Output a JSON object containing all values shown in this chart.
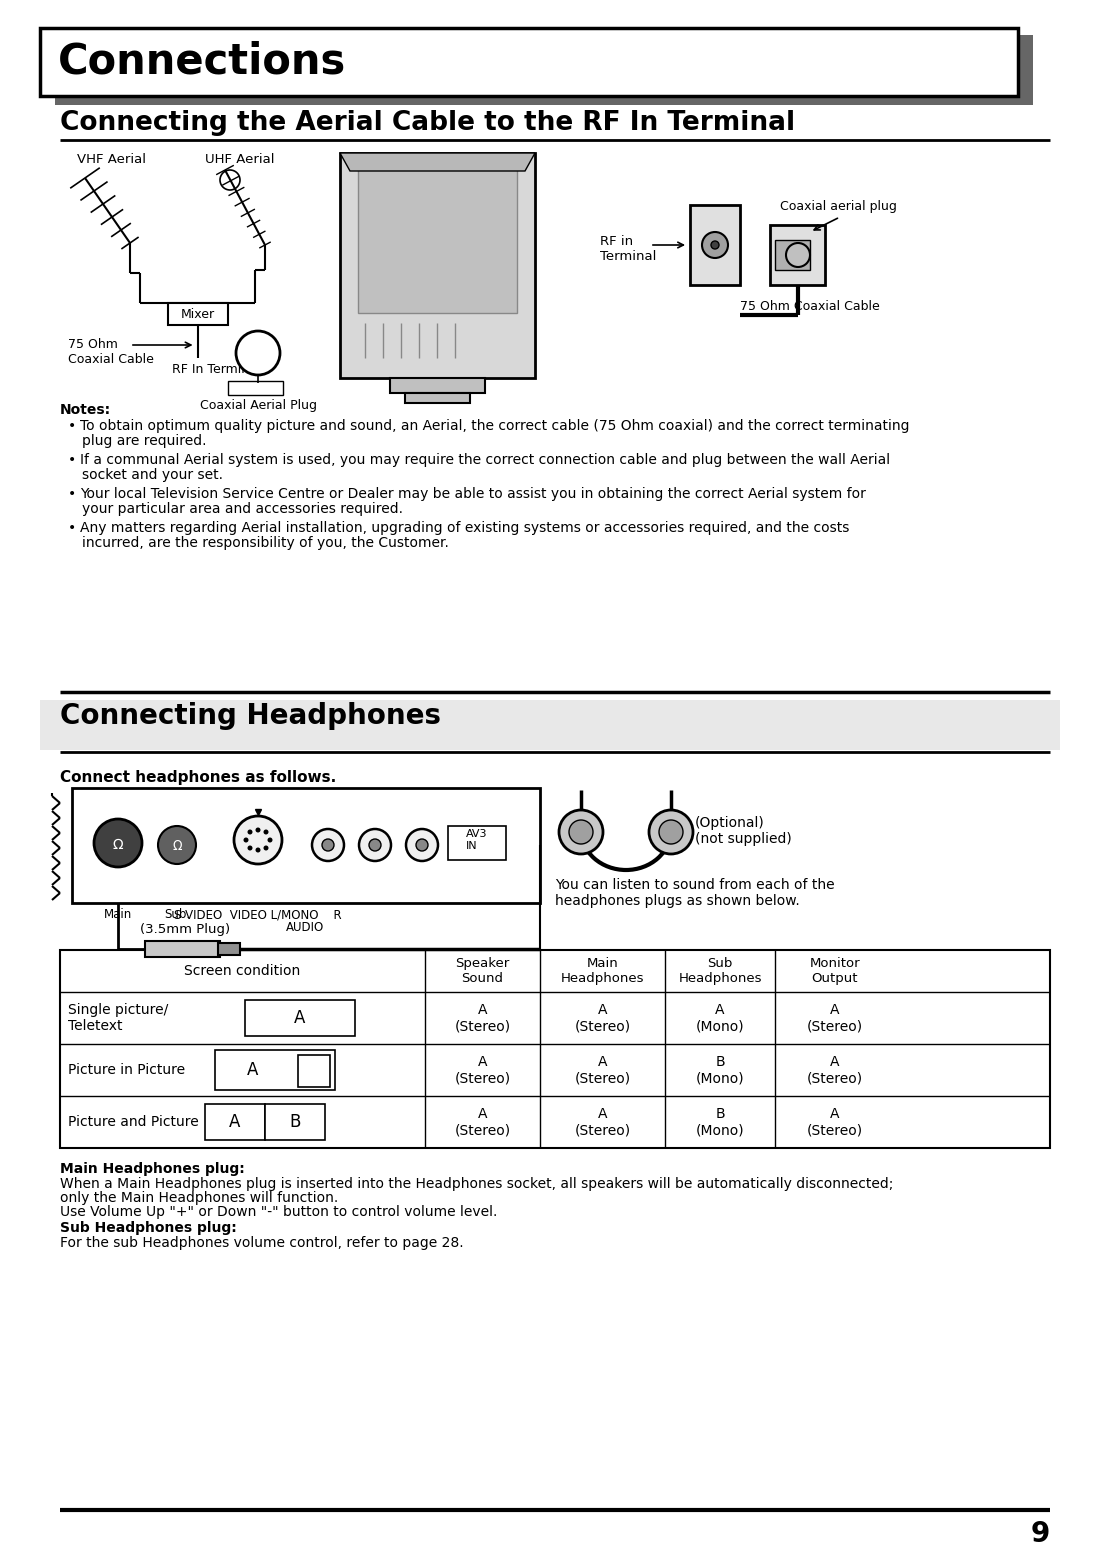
{
  "page_title": "Connections",
  "section1_title": "Connecting the Aerial Cable to the RF In Terminal",
  "section2_title": "Connecting Headphones",
  "notes_title": "Notes:",
  "notes": [
    "To obtain optimum quality picture and sound, an Aerial, the correct cable (75 Ohm coaxial) and the correct terminating\n  plug are required.",
    "If a communal Aerial system is used, you may require the correct connection cable and plug between the wall Aerial\n  socket and your set.",
    "Your local Television Service Centre or Dealer may be able to assist you in obtaining the correct Aerial system for\n  your particular area and accessories required.",
    "Any matters regarding Aerial installation, upgrading of existing systems or accessories required, and the costs\n  incurred, are the responsibility of you, the Customer."
  ],
  "connect_bold": "Connect headphones as follows.",
  "headphone_text": "You can listen to sound from each of the\nheadphones plugs as shown below.",
  "optional_text": "(Optional)\n(not supplied)",
  "plug_label": "(3.5mm Plug)",
  "main_hp_bold": "Main Headphones plug:",
  "main_hp_text1": "When a Main Headphones plug is inserted into the Headphones socket, all speakers will be automatically disconnected;",
  "main_hp_text2": "only the Main Headphones will function.",
  "main_hp_text3": "Use Volume Up \"+\" or Down \"-\" button to control volume level.",
  "sub_hp_bold": "Sub Headphones plug:",
  "sub_hp_text": "For the sub Headphones volume control, refer to page 28.",
  "page_number": "9",
  "table_headers": [
    "Screen condition",
    "Speaker\nSound",
    "Main\nHeadphones",
    "Sub\nHeadphones",
    "Monitor\nOutput"
  ],
  "table_rows": [
    [
      "Single picture/\nTeletext",
      "A\n(Stereo)",
      "A\n(Stereo)",
      "A\n(Mono)",
      "A\n(Stereo)"
    ],
    [
      "Picture in Picture",
      "A\n(Stereo)",
      "A\n(Stereo)",
      "B\n(Mono)",
      "A\n(Stereo)"
    ],
    [
      "Picture and Picture",
      "A\n(Stereo)",
      "A\n(Stereo)",
      "B\n(Mono)",
      "A\n(Stereo)"
    ]
  ],
  "bg_color": "#ffffff"
}
